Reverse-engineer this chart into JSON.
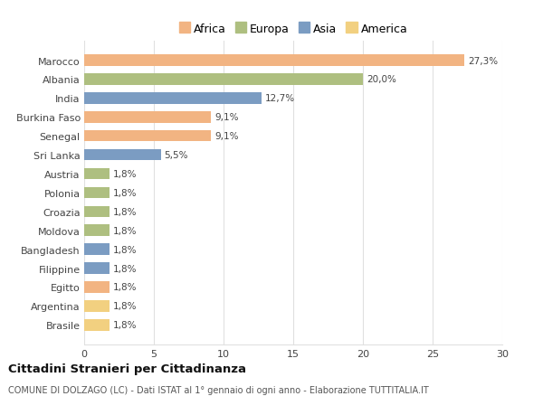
{
  "countries": [
    "Brasile",
    "Argentina",
    "Egitto",
    "Filippine",
    "Bangladesh",
    "Moldova",
    "Croazia",
    "Polonia",
    "Austria",
    "Sri Lanka",
    "Senegal",
    "Burkina Faso",
    "India",
    "Albania",
    "Marocco"
  ],
  "values": [
    1.8,
    1.8,
    1.8,
    1.8,
    1.8,
    1.8,
    1.8,
    1.8,
    1.8,
    5.5,
    9.1,
    9.1,
    12.7,
    20.0,
    27.3
  ],
  "labels": [
    "1,8%",
    "1,8%",
    "1,8%",
    "1,8%",
    "1,8%",
    "1,8%",
    "1,8%",
    "1,8%",
    "1,8%",
    "5,5%",
    "9,1%",
    "9,1%",
    "12,7%",
    "20,0%",
    "27,3%"
  ],
  "continents": [
    "America",
    "America",
    "Africa",
    "Asia",
    "Asia",
    "Europa",
    "Europa",
    "Europa",
    "Europa",
    "Asia",
    "Africa",
    "Africa",
    "Asia",
    "Europa",
    "Africa"
  ],
  "colors": {
    "Africa": "#F2B482",
    "Europa": "#AEBF80",
    "Asia": "#7B9CC2",
    "America": "#F2D080"
  },
  "legend_order": [
    "Africa",
    "Europa",
    "Asia",
    "America"
  ],
  "title": "Cittadini Stranieri per Cittadinanza",
  "subtitle": "COMUNE DI DOLZAGO (LC) - Dati ISTAT al 1° gennaio di ogni anno - Elaborazione TUTTITALIA.IT",
  "xlim": [
    0,
    30
  ],
  "xticks": [
    0,
    5,
    10,
    15,
    20,
    25,
    30
  ],
  "background_color": "#ffffff",
  "grid_color": "#e0e0e0"
}
